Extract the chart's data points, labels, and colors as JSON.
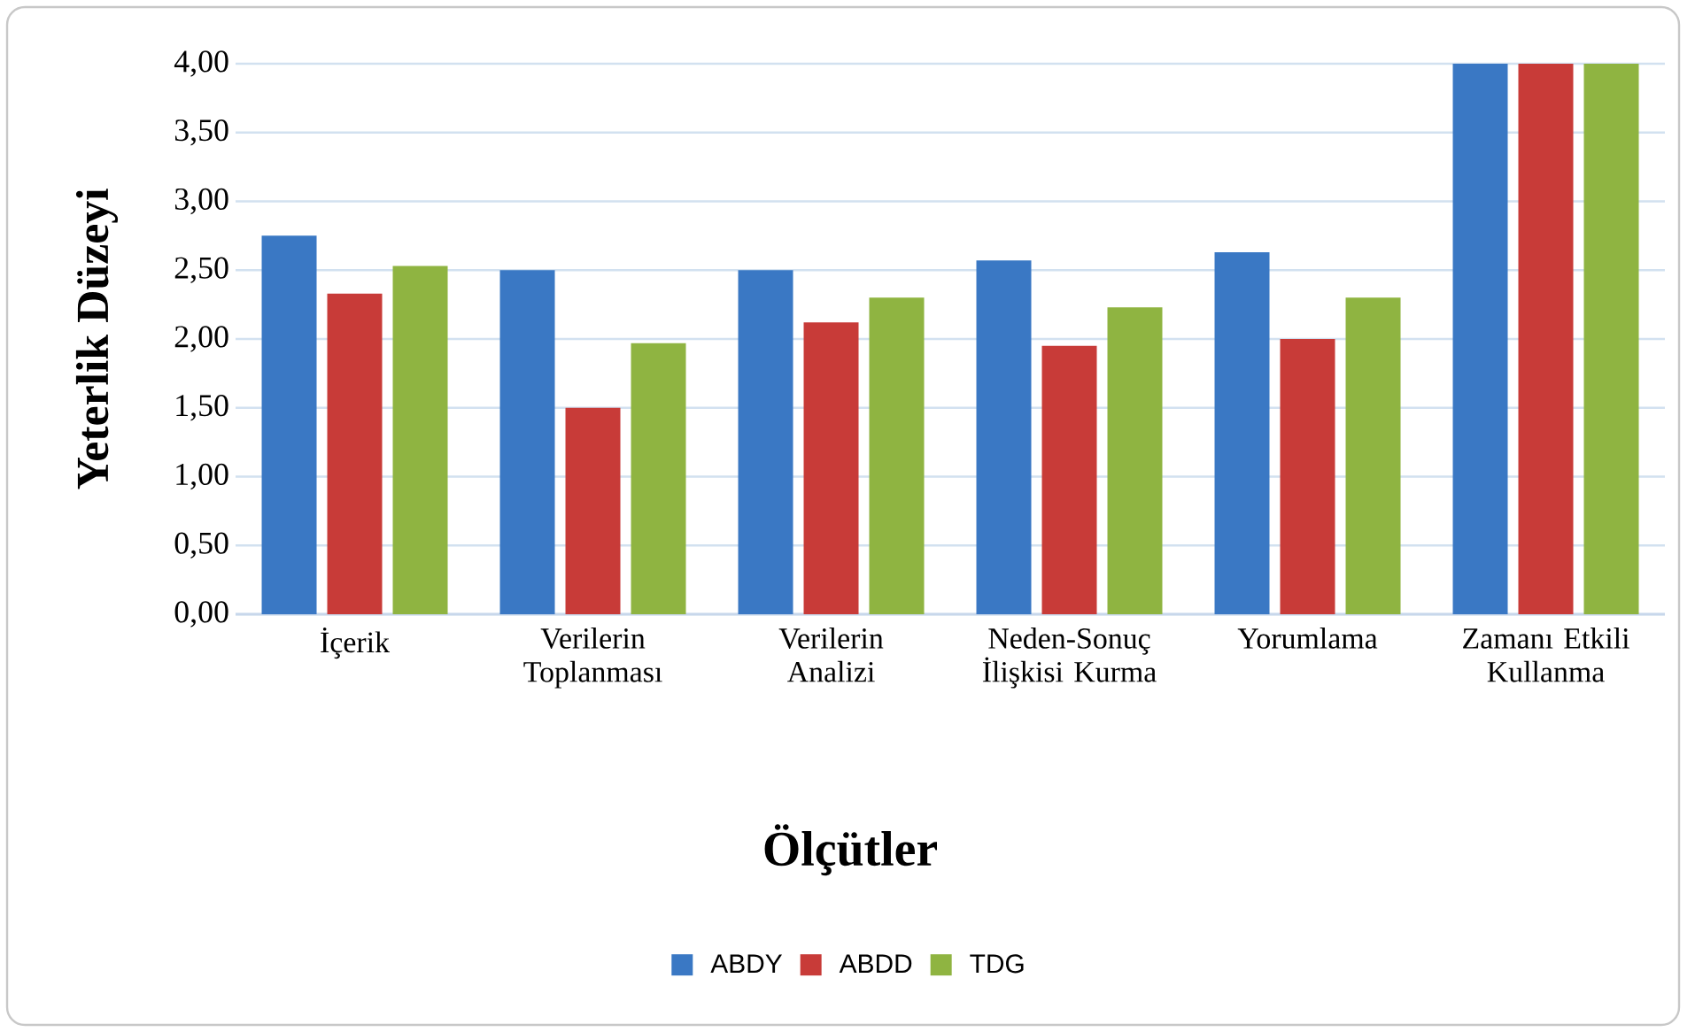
{
  "chart_data": {
    "type": "bar",
    "xlabel": "Ölçütler",
    "ylabel": "Yeterlik Düzeyi",
    "categories": [
      "İçerik",
      "Verilerin Toplanması",
      "Verilerin Analizi",
      "Neden-Sonuç İlişkisi Kurma",
      "Yorumlama",
      "Zamanı Etkili Kullanma"
    ],
    "series": [
      {
        "name": "ABDY",
        "color": "#3a78c4",
        "values": [
          2.75,
          2.5,
          2.5,
          2.57,
          2.63,
          4.0
        ]
      },
      {
        "name": "ABDD",
        "color": "#c83b38",
        "values": [
          2.33,
          1.5,
          2.12,
          1.95,
          2.0,
          4.0
        ]
      },
      {
        "name": "TDG",
        "color": "#8fb441",
        "values": [
          2.53,
          1.97,
          2.3,
          2.23,
          2.3,
          4.0
        ]
      }
    ],
    "ylim": [
      0,
      4
    ],
    "yticks": [
      {
        "value": 0,
        "label": "0,00"
      },
      {
        "value": 0.5,
        "label": "0,50"
      },
      {
        "value": 1,
        "label": "1,00"
      },
      {
        "value": 1.5,
        "label": "1,50"
      },
      {
        "value": 2,
        "label": "2,00"
      },
      {
        "value": 2.5,
        "label": "2,50"
      },
      {
        "value": 3,
        "label": "3,00"
      },
      {
        "value": 3.5,
        "label": "3,50"
      },
      {
        "value": 4,
        "label": "4,00"
      }
    ],
    "grid": "y",
    "legend": "bottom"
  }
}
